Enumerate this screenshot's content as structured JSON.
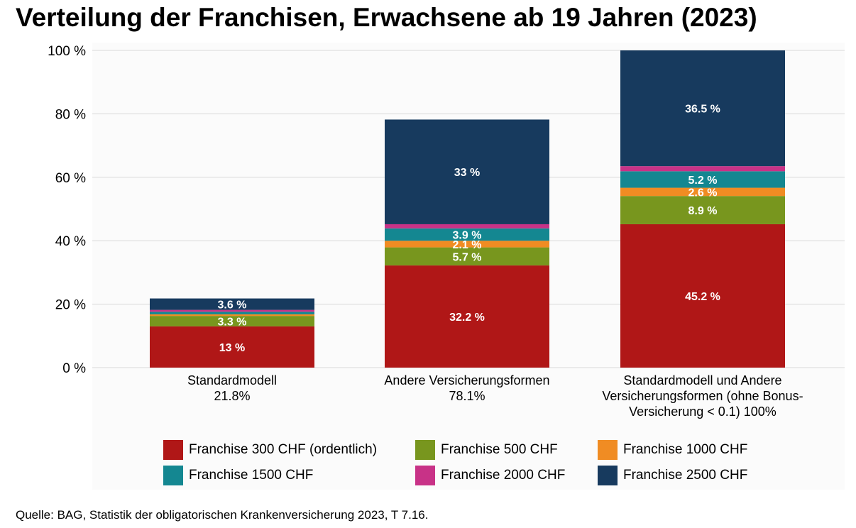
{
  "title": "Verteilung der Franchisen, Erwachsene ab 19 Jahren (2023)",
  "source": "Quelle: BAG, Statistik der obligatorischen Krankenversicherung 2023, T 7.16.",
  "chart_data": {
    "type": "bar",
    "stacked": true,
    "title": "Verteilung der Franchisen, Erwachsene ab 19 Jahren (2023)",
    "xlabel": "",
    "ylabel": "",
    "ylim": [
      0,
      100
    ],
    "yticks": [
      0,
      20,
      40,
      60,
      80,
      100
    ],
    "ytick_labels": [
      "0 %",
      "20 %",
      "40 %",
      "60 %",
      "80 %",
      "100 %"
    ],
    "grid": true,
    "legend_position": "bottom",
    "categories": [
      [
        "Standardmodell",
        "21.8%"
      ],
      [
        "Andere Versicherungsformen",
        "78.1%"
      ],
      [
        "Standardmodell und Andere",
        "Versicherungsformen (ohne Bonus-",
        "Versicherung < 0.1) 100%"
      ]
    ],
    "series": [
      {
        "name": "Franchise 300 CHF (ordentlich)",
        "color": "#b01717",
        "values": [
          13.0,
          32.2,
          45.2
        ],
        "labels": [
          "13 %",
          "32.2 %",
          "45.2 %"
        ]
      },
      {
        "name": "Franchise 500 CHF",
        "color": "#78961e",
        "values": [
          3.3,
          5.7,
          8.9
        ],
        "labels": [
          "3.3 %",
          "5.7 %",
          "8.9 %"
        ]
      },
      {
        "name": "Franchise 1000 CHF",
        "color": "#f08c23",
        "values": [
          0.5,
          2.1,
          2.6
        ],
        "labels": [
          "",
          "2.1 %",
          "2.6 %"
        ]
      },
      {
        "name": "Franchise 1500 CHF",
        "color": "#148791",
        "values": [
          0.8,
          3.9,
          5.2
        ],
        "labels": [
          "",
          "3.9 %",
          "5.2 %"
        ]
      },
      {
        "name": "Franchise 2000 CHF",
        "color": "#c83287",
        "values": [
          0.6,
          1.3,
          1.6
        ],
        "labels": [
          "",
          "",
          ""
        ]
      },
      {
        "name": "Franchise 2500 CHF",
        "color": "#173a5e",
        "values": [
          3.6,
          33.0,
          36.5
        ],
        "labels": [
          "3.6 %",
          "33 %",
          "36.5 %"
        ]
      }
    ]
  }
}
